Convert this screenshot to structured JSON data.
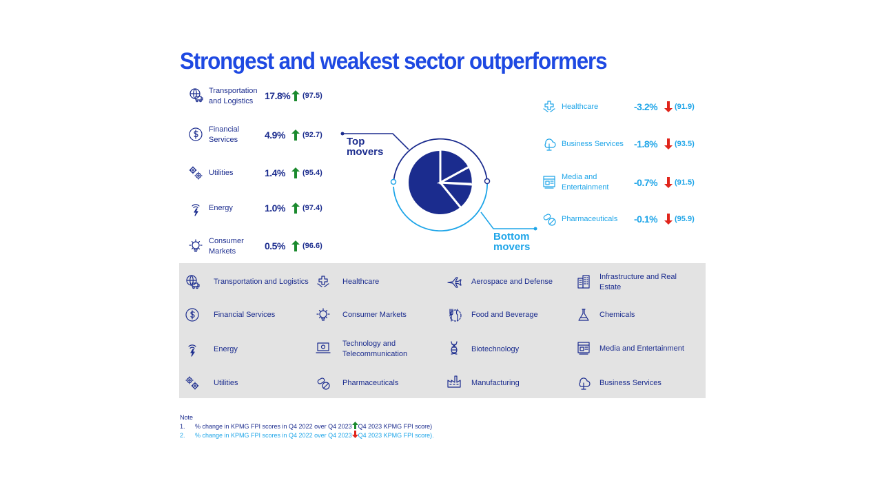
{
  "title": "Strongest and weakest sector outperformers",
  "top_movers": {
    "label_line1": "Top",
    "label_line2": "movers",
    "items": [
      {
        "label_line1": "Transportation",
        "label_line2": "and Logistics",
        "percent": "17.8%",
        "score": "(97.5)",
        "icon": "truck-globe-icon"
      },
      {
        "label_line1": "Financial",
        "label_line2": "Services",
        "percent": "4.9%",
        "score": "(92.7)",
        "icon": "dollar-icon"
      },
      {
        "label_line1": "Utilities",
        "label_line2": "",
        "percent": "1.4%",
        "score": "(95.4)",
        "icon": "gears-icon"
      },
      {
        "label_line1": "Energy",
        "label_line2": "",
        "percent": "1.0%",
        "score": "(97.4)",
        "icon": "energy-icon"
      },
      {
        "label_line1": "Consumer",
        "label_line2": "Markets",
        "percent": "0.5%",
        "score": "(96.6)",
        "icon": "lightbulb-gear-icon"
      }
    ]
  },
  "bottom_movers": {
    "label_line1": "Bottom",
    "label_line2": "movers",
    "items": [
      {
        "label_line1": "Healthcare",
        "label_line2": "",
        "percent": "-3.2%",
        "score": "(91.9)",
        "icon": "healthcare-icon"
      },
      {
        "label_line1": "Business Services",
        "label_line2": "",
        "percent": "-1.8%",
        "score": "(93.5)",
        "icon": "tree-network-icon"
      },
      {
        "label_line1": "Media and",
        "label_line2": "Entertainment",
        "percent": "-0.7%",
        "score": "(91.5)",
        "icon": "media-icon"
      },
      {
        "label_line1": "Pharmaceuticals",
        "label_line2": "",
        "percent": "-0.1%",
        "score": "(95.9)",
        "icon": "pills-icon"
      }
    ]
  },
  "legend": {
    "items": [
      {
        "label": "Transportation and Logistics",
        "label2": "",
        "icon": "truck-globe-icon"
      },
      {
        "label": "Healthcare",
        "label2": "",
        "icon": "healthcare-icon"
      },
      {
        "label": "Aerospace and Defense",
        "label2": "",
        "icon": "plane-icon"
      },
      {
        "label": "Infrastructure and Real",
        "label2": "Estate",
        "icon": "buildings-icon"
      },
      {
        "label": "Financial Services",
        "label2": "",
        "icon": "dollar-icon"
      },
      {
        "label": "Consumer Markets",
        "label2": "",
        "icon": "lightbulb-gear-icon"
      },
      {
        "label": "Food and Beverage",
        "label2": "",
        "icon": "fork-knife-icon"
      },
      {
        "label": "Chemicals",
        "label2": "",
        "icon": "flask-icon"
      },
      {
        "label": "Energy",
        "label2": "",
        "icon": "energy-icon"
      },
      {
        "label": "Technology and",
        "label2": "Telecommunication",
        "icon": "laptop-icon"
      },
      {
        "label": "Biotechnology",
        "label2": "",
        "icon": "dna-icon"
      },
      {
        "label": "Media and Entertainment",
        "label2": "",
        "icon": "media-icon"
      },
      {
        "label": "Utilities",
        "label2": "",
        "icon": "gears-icon"
      },
      {
        "label": "Pharmaceuticals",
        "label2": "",
        "icon": "pills-icon"
      },
      {
        "label": "Manufacturing",
        "label2": "",
        "icon": "factory-icon"
      },
      {
        "label": "Business Services",
        "label2": "",
        "icon": "tree-network-icon"
      }
    ]
  },
  "notes": {
    "heading": "Note",
    "n1_num": "1.",
    "n1_a": "% change in KPMG FPI scores in Q4 2022 over Q4 2023",
    "n1_b": "Q4 2023 KPMG FPI score)",
    "n2_num": "2.",
    "n2_a": "% change in KPMG FPI scores in Q4 2022 over Q4 2023",
    "n2_b": "Q4 2023 KPMG FPI score)."
  },
  "colors": {
    "title_blue": "#1e49e2",
    "navy": "#1b2c8e",
    "light_blue": "#1ea5e8",
    "up_green": "#1b8a2e",
    "down_red": "#e0251b",
    "legend_bg": "#e3e3e3"
  }
}
